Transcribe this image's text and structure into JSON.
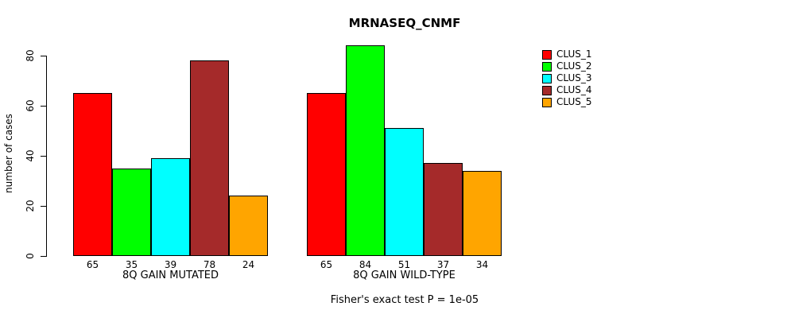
{
  "chart_data": {
    "type": "bar",
    "title": "MRNASEQ_CNMF",
    "ylabel": "number of cases",
    "xlabel": "",
    "ylim": [
      0,
      80
    ],
    "yticks": [
      0,
      20,
      40,
      60,
      80
    ],
    "grid": false,
    "legend_position": "right",
    "categories": [
      "8Q GAIN MUTATED",
      "8Q GAIN WILD-TYPE"
    ],
    "series": [
      {
        "name": "CLUS_1",
        "color": "#FF0000",
        "values": [
          65,
          65
        ]
      },
      {
        "name": "CLUS_2",
        "color": "#00FF00",
        "values": [
          35,
          84
        ]
      },
      {
        "name": "CLUS_3",
        "color": "#00FFFF",
        "values": [
          39,
          51
        ]
      },
      {
        "name": "CLUS_4",
        "color": "#A52A2A",
        "values": [
          78,
          37
        ]
      },
      {
        "name": "CLUS_5",
        "color": "#FFA500",
        "values": [
          24,
          34
        ]
      }
    ],
    "bar_value_labels": {
      "8Q GAIN MUTATED": [
        65,
        35,
        39,
        78,
        24
      ],
      "8Q GAIN WILD-TYPE": [
        65,
        84,
        51,
        37,
        34
      ]
    },
    "annotation": "Fisher's exact test P = 1e-05"
  }
}
